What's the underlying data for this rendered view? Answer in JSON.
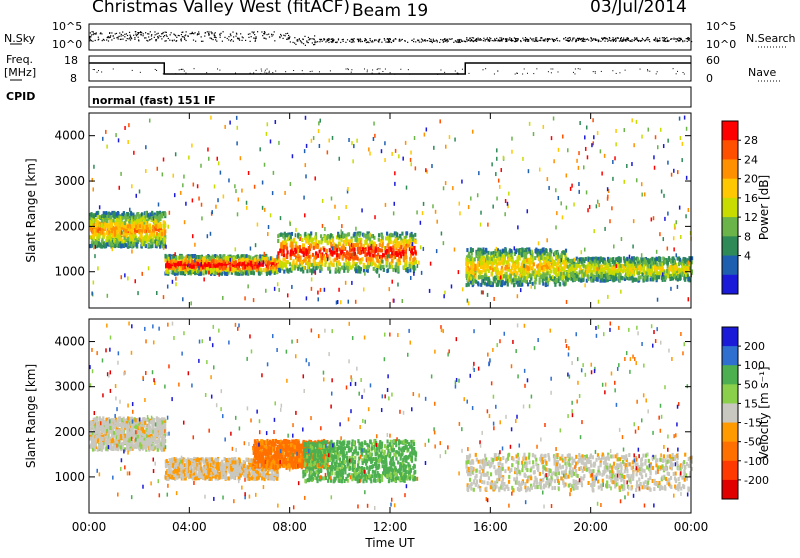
{
  "header": {
    "station": "Christmas Valley West (fitACF)",
    "beam": "Beam 19",
    "date": "03/Jul/2014"
  },
  "panels": {
    "noise": {
      "left_label": "N.Sky",
      "right_label": "N.Search",
      "left_ticks": [
        "10^5",
        "10^0"
      ],
      "right_ticks": [
        "10^5",
        "10^0"
      ]
    },
    "freq": {
      "left_label_line1": "Freq.",
      "left_label_line2": "[MHz]",
      "right_label": "Nave",
      "left_ticks": [
        "18",
        "8"
      ],
      "right_ticks": [
        "60",
        "0"
      ]
    },
    "cpid": {
      "label": "CPID",
      "mode_text": "normal (fast) 151 IF"
    }
  },
  "chart_data": [
    {
      "type": "heatmap",
      "title": "",
      "xlabel": "Time UT",
      "ylabel": "Slant Range [km]",
      "x_ticks": [
        "00:00",
        "04:00",
        "08:00",
        "12:00",
        "16:00",
        "20:00",
        "00:00"
      ],
      "x_range_hours": [
        0,
        24
      ],
      "y_ticks": [
        1000,
        2000,
        3000,
        4000
      ],
      "ylim": [
        200,
        4500
      ],
      "colorbar": {
        "label": "Power [dB]",
        "ticks": [
          "28",
          "24",
          "20",
          "16",
          "12",
          "8",
          "4"
        ],
        "colors": [
          "#ff0000",
          "#ff5000",
          "#ff9000",
          "#ffc800",
          "#c8dc00",
          "#6ab44a",
          "#2e8b57",
          "#1f5fb0",
          "#1a1ad8"
        ]
      },
      "segments": [
        {
          "name": "early",
          "t": [
            0,
            3
          ],
          "range": [
            1550,
            2300
          ],
          "level": 0.6
        },
        {
          "name": "morning",
          "t": [
            3,
            7.5
          ],
          "range": [
            950,
            1350
          ],
          "level": 0.95
        },
        {
          "name": "midday",
          "t": [
            7.5,
            13
          ],
          "range": [
            1000,
            1850
          ],
          "level": 0.85
        },
        {
          "name": "afternoon",
          "t": [
            15,
            19
          ],
          "range": [
            700,
            1500
          ],
          "level": 0.5
        },
        {
          "name": "evening",
          "t": [
            19,
            24
          ],
          "range": [
            800,
            1300
          ],
          "level": 0.4
        }
      ]
    },
    {
      "type": "heatmap",
      "title": "",
      "xlabel": "Time UT",
      "ylabel": "Slant Range [km]",
      "x_ticks": [
        "00:00",
        "04:00",
        "08:00",
        "12:00",
        "16:00",
        "20:00",
        "00:00"
      ],
      "x_range_hours": [
        0,
        24
      ],
      "y_ticks": [
        1000,
        2000,
        3000,
        4000
      ],
      "ylim": [
        200,
        4500
      ],
      "colorbar": {
        "label": "Velocity [m s⁻¹]",
        "ticks": [
          "200",
          "100",
          "50",
          "15",
          "-15",
          "-50",
          "-100",
          "-200"
        ],
        "colors": [
          "#1a1ad8",
          "#2e6fd0",
          "#4caf50",
          "#8bd04a",
          "#c8c8c0",
          "#ff9a00",
          "#ff7000",
          "#ff3a00",
          "#e00000"
        ]
      },
      "segments": [
        {
          "name": "early",
          "t": [
            0,
            3
          ],
          "range": [
            1600,
            2300
          ],
          "v": 0
        },
        {
          "name": "morning",
          "t": [
            3,
            7.5
          ],
          "range": [
            950,
            1400
          ],
          "v": -10
        },
        {
          "name": "midday-a",
          "t": [
            6.5,
            9.5
          ],
          "range": [
            1200,
            1800
          ],
          "v": -60
        },
        {
          "name": "midday-b",
          "t": [
            8.5,
            13
          ],
          "range": [
            900,
            1800
          ],
          "v": 40
        },
        {
          "name": "afternoon",
          "t": [
            15,
            24
          ],
          "range": [
            700,
            1500
          ],
          "v": 0
        }
      ]
    }
  ]
}
